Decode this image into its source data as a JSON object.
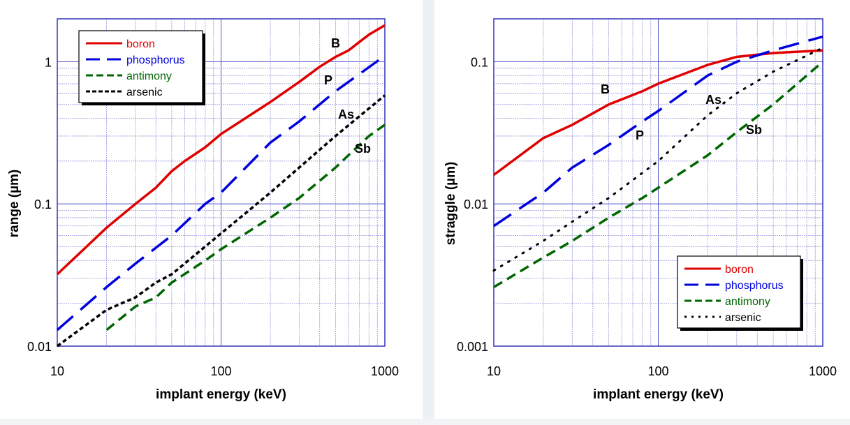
{
  "chart_data": [
    {
      "type": "line",
      "xscale": "log",
      "yscale": "log",
      "xlabel": "implant energy (keV)",
      "ylabel": "range (µm)",
      "xlim": [
        10,
        1000
      ],
      "ylim": [
        0.01,
        2
      ],
      "xticks": [
        "10",
        "100",
        "1000"
      ],
      "yticks": [
        "0.01",
        "0.1",
        "1"
      ],
      "grid": true,
      "legend_position": "top-left",
      "series": [
        {
          "name": "boron",
          "label": "B",
          "color": "#e00000",
          "style": "solid",
          "x": [
            10,
            20,
            30,
            40,
            50,
            60,
            80,
            100,
            200,
            300,
            400,
            500,
            600,
            800,
            1000
          ],
          "y": [
            0.032,
            0.068,
            0.1,
            0.13,
            0.17,
            0.2,
            0.25,
            0.31,
            0.52,
            0.72,
            0.92,
            1.08,
            1.2,
            1.55,
            1.8
          ]
        },
        {
          "name": "phosphorus",
          "label": "P",
          "color": "#0000dd",
          "style": "longdash",
          "x": [
            10,
            20,
            30,
            50,
            80,
            100,
            200,
            300,
            500,
            1000
          ],
          "y": [
            0.013,
            0.026,
            0.038,
            0.06,
            0.1,
            0.12,
            0.27,
            0.38,
            0.62,
            1.1
          ]
        },
        {
          "name": "antimony",
          "label": "Sb",
          "color": "#006600",
          "style": "dash",
          "x": [
            20,
            30,
            40,
            50,
            80,
            100,
            200,
            300,
            500,
            600,
            800,
            1000
          ],
          "y": [
            0.013,
            0.019,
            0.022,
            0.028,
            0.04,
            0.048,
            0.08,
            0.11,
            0.18,
            0.22,
            0.3,
            0.36
          ]
        },
        {
          "name": "arsenic",
          "label": "As",
          "color": "#000000",
          "style": "shortdash",
          "x": [
            10,
            20,
            30,
            40,
            50,
            100,
            200,
            300,
            500,
            1000
          ],
          "y": [
            0.01,
            0.018,
            0.022,
            0.028,
            0.032,
            0.062,
            0.12,
            0.18,
            0.3,
            0.58
          ]
        }
      ]
    },
    {
      "type": "line",
      "xscale": "log",
      "yscale": "log",
      "xlabel": "implant energy (keV)",
      "ylabel": "straggle (µm)",
      "xlim": [
        10,
        1000
      ],
      "ylim": [
        0.001,
        0.2
      ],
      "xticks": [
        "10",
        "100",
        "1000"
      ],
      "yticks": [
        "0.001",
        "0.01",
        "0.1"
      ],
      "grid": true,
      "legend_position": "bottom-right",
      "series": [
        {
          "name": "boron",
          "label": "B",
          "color": "#e00000",
          "style": "solid",
          "x": [
            10,
            20,
            30,
            50,
            80,
            100,
            200,
            300,
            500,
            1000
          ],
          "y": [
            0.016,
            0.029,
            0.036,
            0.05,
            0.062,
            0.07,
            0.095,
            0.108,
            0.115,
            0.12
          ]
        },
        {
          "name": "phosphorus",
          "label": "P",
          "color": "#0000dd",
          "style": "longdash",
          "x": [
            10,
            20,
            30,
            50,
            80,
            100,
            200,
            300,
            500,
            1000
          ],
          "y": [
            0.007,
            0.012,
            0.018,
            0.026,
            0.038,
            0.045,
            0.08,
            0.1,
            0.12,
            0.15
          ]
        },
        {
          "name": "antimony",
          "label": "Sb",
          "color": "#006600",
          "style": "dash",
          "x": [
            10,
            20,
            30,
            50,
            80,
            100,
            200,
            300,
            500,
            1000
          ],
          "y": [
            0.0026,
            0.0042,
            0.0055,
            0.008,
            0.011,
            0.013,
            0.022,
            0.032,
            0.05,
            0.1
          ]
        },
        {
          "name": "arsenic",
          "label": "As",
          "color": "#000000",
          "style": "dot",
          "x": [
            10,
            20,
            30,
            50,
            100,
            200,
            300,
            500,
            1000
          ],
          "y": [
            0.0034,
            0.0055,
            0.0075,
            0.011,
            0.02,
            0.042,
            0.06,
            0.085,
            0.125
          ]
        }
      ]
    }
  ]
}
